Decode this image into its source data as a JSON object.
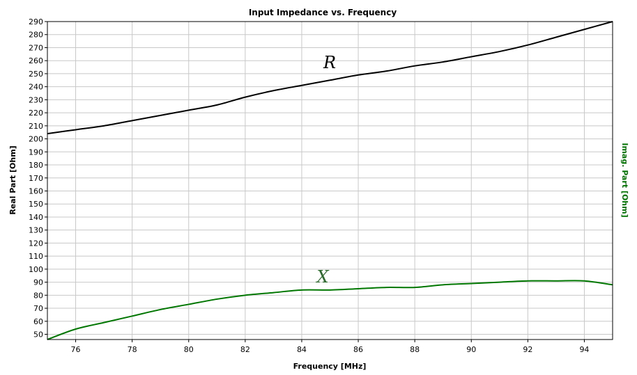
{
  "chart_data": {
    "type": "line",
    "title": "Input Impedance vs. Frequency",
    "xlabel": "Frequency [MHz]",
    "ylabel": "Real Part [Ohm]",
    "y2label": "Imag. Part [Ohm]",
    "xlim": [
      75,
      95
    ],
    "ylim": [
      46,
      290
    ],
    "x_ticks": [
      76,
      78,
      80,
      82,
      84,
      86,
      88,
      90,
      92,
      94
    ],
    "y_ticks": [
      50,
      60,
      70,
      80,
      90,
      100,
      110,
      120,
      130,
      140,
      150,
      160,
      170,
      180,
      190,
      200,
      210,
      220,
      230,
      240,
      250,
      260,
      270,
      280,
      290
    ],
    "grid": true,
    "colors": {
      "R": "#000000",
      "X": "#007700",
      "ylabel": "#000000",
      "y2label": "#007700"
    },
    "series": [
      {
        "name": "R",
        "color": "#000000",
        "x": [
          75,
          76,
          77,
          78,
          79,
          80,
          81,
          82,
          83,
          84,
          85,
          86,
          87,
          88,
          89,
          90,
          91,
          92,
          93,
          94,
          95
        ],
        "values": [
          204,
          207,
          210,
          214,
          218,
          222,
          226,
          232,
          237,
          241,
          245,
          249,
          252,
          256,
          259,
          263,
          267,
          272,
          278,
          284,
          290
        ]
      },
      {
        "name": "X",
        "color": "#007700",
        "x": [
          75,
          76,
          77,
          78,
          79,
          80,
          81,
          82,
          83,
          84,
          85,
          86,
          87,
          88,
          89,
          90,
          91,
          92,
          93,
          94,
          95
        ],
        "values": [
          46,
          54,
          59,
          64,
          69,
          73,
          77,
          80,
          82,
          84,
          84,
          85,
          86,
          86,
          88,
          89,
          90,
          91,
          91,
          91,
          88
        ]
      }
    ]
  }
}
